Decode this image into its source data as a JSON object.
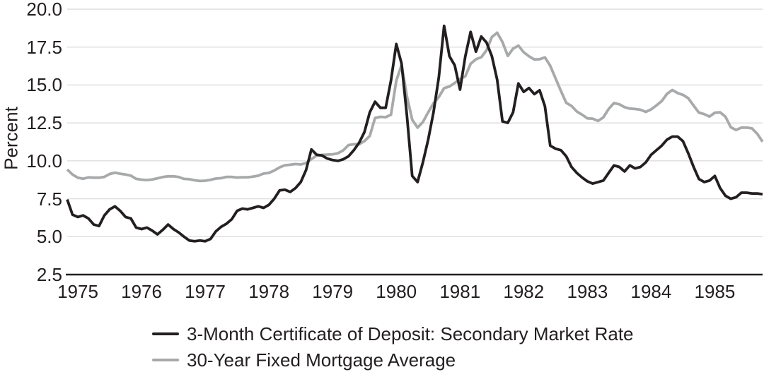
{
  "chart_data": {
    "type": "line",
    "title": "",
    "ylabel": "Percent",
    "xlabel": "",
    "ylim": [
      2.5,
      20.0
    ],
    "yticks": [
      20.0,
      17.5,
      15.0,
      12.5,
      10.0,
      7.5,
      5.0,
      2.5
    ],
    "ytick_labels": [
      "20.0",
      "17.5",
      "15.0",
      "12.5",
      "10.0",
      "7.5",
      "5.0",
      "2.5"
    ],
    "xticks": [
      1975,
      1976,
      1977,
      1978,
      1979,
      1980,
      1981,
      1982,
      1983,
      1984,
      1985
    ],
    "xtick_labels": [
      "1975",
      "1976",
      "1977",
      "1978",
      "1979",
      "1980",
      "1981",
      "1982",
      "1983",
      "1984",
      "1985"
    ],
    "x_unit": "month",
    "x_start": "1975-01",
    "x_end": "1985-12",
    "grid": "horizontal",
    "grid_color": "#dedede",
    "axis_line_color": "#231f20",
    "legend_position": "bottom-left",
    "series": [
      {
        "name": "3-Month Certificate of Deposit: Secondary Market Rate",
        "color": "#231f20",
        "values": [
          7.45,
          6.45,
          6.3,
          6.4,
          6.2,
          5.8,
          5.7,
          6.4,
          6.8,
          7.0,
          6.7,
          6.3,
          6.2,
          5.6,
          5.5,
          5.6,
          5.4,
          5.15,
          5.45,
          5.8,
          5.5,
          5.28,
          5.0,
          4.75,
          4.7,
          4.75,
          4.7,
          4.85,
          5.35,
          5.65,
          5.85,
          6.15,
          6.7,
          6.85,
          6.8,
          6.9,
          7.0,
          6.9,
          7.1,
          7.5,
          8.05,
          8.1,
          7.95,
          8.2,
          8.6,
          9.4,
          10.75,
          10.4,
          10.35,
          10.15,
          10.05,
          10.0,
          10.1,
          10.3,
          10.7,
          11.2,
          11.9,
          13.2,
          13.9,
          13.5,
          13.5,
          15.3,
          17.7,
          16.4,
          13.0,
          9.0,
          8.6,
          9.9,
          11.4,
          13.2,
          15.5,
          18.9,
          16.9,
          16.3,
          14.7,
          16.9,
          18.5,
          17.2,
          18.2,
          17.8,
          16.9,
          15.35,
          12.6,
          12.5,
          13.2,
          15.1,
          14.55,
          14.8,
          14.4,
          14.65,
          13.6,
          11.0,
          10.8,
          10.7,
          10.3,
          9.6,
          9.2,
          8.9,
          8.65,
          8.5,
          8.6,
          8.7,
          9.2,
          9.7,
          9.6,
          9.3,
          9.7,
          9.5,
          9.6,
          9.9,
          10.4,
          10.7,
          11.0,
          11.4,
          11.6,
          11.6,
          11.3,
          10.5,
          9.6,
          8.8,
          8.6,
          8.7,
          9.0,
          8.2,
          7.7,
          7.5,
          7.6,
          7.9,
          7.9,
          7.85,
          7.85,
          7.8
        ]
      },
      {
        "name": "30-Year Fixed Mortgage Average",
        "color": "#a7a9aa",
        "values": [
          9.43,
          9.1,
          8.89,
          8.82,
          8.91,
          8.89,
          8.89,
          8.94,
          9.13,
          9.22,
          9.15,
          9.1,
          9.02,
          8.81,
          8.76,
          8.73,
          8.77,
          8.85,
          8.93,
          8.98,
          8.98,
          8.93,
          8.81,
          8.79,
          8.72,
          8.67,
          8.69,
          8.75,
          8.83,
          8.86,
          8.94,
          8.94,
          8.9,
          8.92,
          8.92,
          8.96,
          9.02,
          9.16,
          9.2,
          9.36,
          9.57,
          9.71,
          9.74,
          9.79,
          9.76,
          9.86,
          10.11,
          10.35,
          10.39,
          10.41,
          10.43,
          10.5,
          10.69,
          11.04,
          11.09,
          11.09,
          11.3,
          11.64,
          12.83,
          12.9,
          12.88,
          13.04,
          15.28,
          16.33,
          14.26,
          12.71,
          12.19,
          12.56,
          13.2,
          13.79,
          14.21,
          14.79,
          14.9,
          15.13,
          15.4,
          15.58,
          16.4,
          16.7,
          16.83,
          17.29,
          18.16,
          18.45,
          17.83,
          16.92,
          17.4,
          17.6,
          17.16,
          16.89,
          16.68,
          16.7,
          16.82,
          16.27,
          15.43,
          14.61,
          13.83,
          13.62,
          13.25,
          13.04,
          12.8,
          12.78,
          12.63,
          12.87,
          13.42,
          13.81,
          13.73,
          13.54,
          13.44,
          13.42,
          13.37,
          13.23,
          13.39,
          13.65,
          13.94,
          14.42,
          14.67,
          14.47,
          14.35,
          14.13,
          13.64,
          13.18,
          13.08,
          12.92,
          13.17,
          13.2,
          12.91,
          12.22,
          12.03,
          12.19,
          12.19,
          12.14,
          11.78,
          11.26
        ]
      }
    ]
  }
}
